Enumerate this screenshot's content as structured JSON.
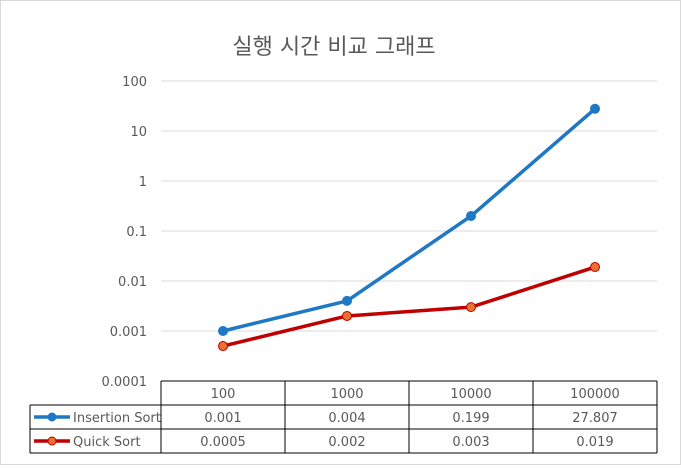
{
  "chart_data": {
    "type": "line",
    "title": "실행 시간 비교 그래프",
    "xlabel": "",
    "ylabel": "",
    "yscale": "log",
    "ylim": [
      0.0001,
      100
    ],
    "yticks": [
      "100",
      "10",
      "1",
      "0.1",
      "0.01",
      "0.001",
      "0.0001"
    ],
    "categories": [
      "100",
      "1000",
      "10000",
      "100000"
    ],
    "grid": true,
    "legend": "data table",
    "series": [
      {
        "name": "Insertion Sort",
        "color": "#1f78c4",
        "marker_color": "#1f78c4",
        "values": [
          0.001,
          0.004,
          0.199,
          27.807
        ],
        "labels": [
          "0.001",
          "0.004",
          "0.199",
          "27.807"
        ]
      },
      {
        "name": "Quick Sort",
        "color": "#c00000",
        "marker_color": "#e97132",
        "values": [
          0.0005,
          0.002,
          0.003,
          0.019
        ],
        "labels": [
          "0.0005",
          "0.002",
          "0.003",
          "0.019"
        ]
      }
    ]
  }
}
